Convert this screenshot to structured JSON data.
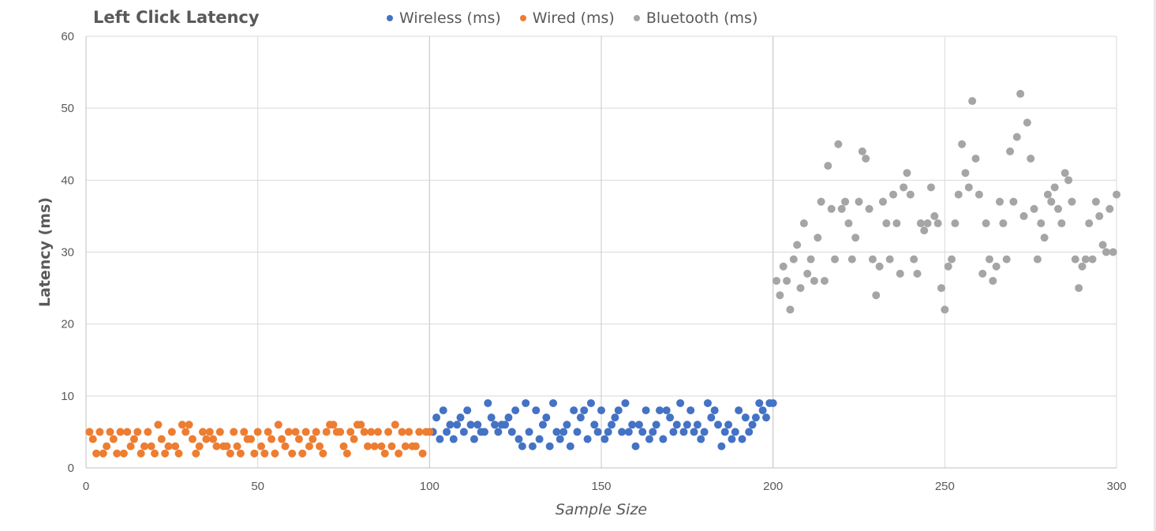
{
  "chart_data": {
    "type": "scatter",
    "title": "Left Click Latency",
    "xlabel": "Sample Size",
    "ylabel": "Latency (ms)",
    "xlim": [
      0,
      300
    ],
    "ylim": [
      0,
      60
    ],
    "x_ticks": [
      0,
      50,
      100,
      150,
      200,
      250,
      300
    ],
    "y_ticks": [
      0,
      10,
      20,
      30,
      40,
      50,
      60
    ],
    "grid": true,
    "legend_position": "top",
    "series": [
      {
        "name": "Wireless (ms)",
        "color": "#4472C4",
        "x": [
          101,
          102,
          103,
          104,
          105,
          106,
          107,
          108,
          109,
          110,
          111,
          112,
          113,
          114,
          115,
          116,
          117,
          118,
          119,
          120,
          121,
          122,
          123,
          124,
          125,
          126,
          127,
          128,
          129,
          130,
          131,
          132,
          133,
          134,
          135,
          136,
          137,
          138,
          139,
          140,
          141,
          142,
          143,
          144,
          145,
          146,
          147,
          148,
          149,
          150,
          151,
          152,
          153,
          154,
          155,
          156,
          157,
          158,
          159,
          160,
          161,
          162,
          163,
          164,
          165,
          166,
          167,
          168,
          169,
          170,
          171,
          172,
          173,
          174,
          175,
          176,
          177,
          178,
          179,
          180,
          181,
          182,
          183,
          184,
          185,
          186,
          187,
          188,
          189,
          190,
          191,
          192,
          193,
          194,
          195,
          196,
          197,
          198,
          199,
          200
        ],
        "y": [
          5,
          7,
          4,
          8,
          5,
          6,
          4,
          6,
          7,
          5,
          8,
          6,
          4,
          6,
          5,
          5,
          9,
          7,
          6,
          5,
          6,
          6,
          7,
          5,
          8,
          4,
          3,
          9,
          5,
          3,
          8,
          4,
          6,
          7,
          3,
          9,
          5,
          4,
          5,
          6,
          3,
          8,
          5,
          7,
          8,
          4,
          9,
          6,
          5,
          8,
          4,
          5,
          6,
          7,
          8,
          5,
          9,
          5,
          6,
          3,
          6,
          5,
          8,
          4,
          5,
          6,
          8,
          4,
          8,
          7,
          5,
          6,
          9,
          5,
          6,
          8,
          5,
          6,
          4,
          5,
          9,
          7,
          8,
          6,
          3,
          5,
          6,
          4,
          5,
          8,
          4,
          7,
          5,
          6,
          7,
          9,
          8,
          7,
          9,
          9
        ]
      },
      {
        "name": "Wired (ms)",
        "color": "#ED7D31",
        "x": [
          1,
          2,
          3,
          4,
          5,
          6,
          7,
          8,
          9,
          10,
          11,
          12,
          13,
          14,
          15,
          16,
          17,
          18,
          19,
          20,
          21,
          22,
          23,
          24,
          25,
          26,
          27,
          28,
          29,
          30,
          31,
          32,
          33,
          34,
          35,
          36,
          37,
          38,
          39,
          40,
          41,
          42,
          43,
          44,
          45,
          46,
          47,
          48,
          49,
          50,
          51,
          52,
          53,
          54,
          55,
          56,
          57,
          58,
          59,
          60,
          61,
          62,
          63,
          64,
          65,
          66,
          67,
          68,
          69,
          70,
          71,
          72,
          73,
          74,
          75,
          76,
          77,
          78,
          79,
          80,
          81,
          82,
          83,
          84,
          85,
          86,
          87,
          88,
          89,
          90,
          91,
          92,
          93,
          94,
          95,
          96,
          97,
          98,
          99,
          100
        ],
        "y": [
          5,
          4,
          2,
          5,
          2,
          3,
          5,
          4,
          2,
          5,
          2,
          5,
          3,
          4,
          5,
          2,
          3,
          5,
          3,
          2,
          6,
          4,
          2,
          3,
          5,
          3,
          2,
          6,
          5,
          6,
          4,
          2,
          3,
          5,
          4,
          5,
          4,
          3,
          5,
          3,
          3,
          2,
          5,
          3,
          2,
          5,
          4,
          4,
          2,
          5,
          3,
          2,
          5,
          4,
          2,
          6,
          4,
          3,
          5,
          2,
          5,
          4,
          2,
          5,
          3,
          4,
          5,
          3,
          2,
          5,
          6,
          6,
          5,
          5,
          3,
          2,
          5,
          4,
          6,
          6,
          5,
          3,
          5,
          3,
          5,
          3,
          2,
          5,
          3,
          6,
          2,
          5,
          3,
          5,
          3,
          3,
          5,
          2,
          5,
          5
        ]
      },
      {
        "name": "Bluetooth (ms)",
        "color": "#A5A5A5",
        "x": [
          201,
          202,
          203,
          204,
          205,
          206,
          207,
          208,
          209,
          210,
          211,
          212,
          213,
          214,
          215,
          216,
          217,
          218,
          219,
          220,
          221,
          222,
          223,
          224,
          225,
          226,
          227,
          228,
          229,
          230,
          231,
          232,
          233,
          234,
          235,
          236,
          237,
          238,
          239,
          240,
          241,
          242,
          243,
          244,
          245,
          246,
          247,
          248,
          249,
          250,
          251,
          252,
          253,
          254,
          255,
          256,
          257,
          258,
          259,
          260,
          261,
          262,
          263,
          264,
          265,
          266,
          267,
          268,
          269,
          270,
          271,
          272,
          273,
          274,
          275,
          276,
          277,
          278,
          279,
          280,
          281,
          282,
          283,
          284,
          285,
          286,
          287,
          288,
          289,
          290,
          291,
          292,
          293,
          294,
          295,
          296,
          297,
          298,
          299,
          300
        ],
        "y": [
          26,
          24,
          28,
          26,
          22,
          29,
          31,
          25,
          34,
          27,
          29,
          26,
          32,
          37,
          26,
          42,
          36,
          29,
          45,
          36,
          37,
          34,
          29,
          32,
          37,
          44,
          43,
          36,
          29,
          24,
          28,
          37,
          34,
          29,
          38,
          34,
          27,
          39,
          41,
          38,
          29,
          27,
          34,
          33,
          34,
          39,
          35,
          34,
          25,
          22,
          28,
          29,
          34,
          38,
          45,
          41,
          39,
          51,
          43,
          38,
          27,
          34,
          29,
          26,
          28,
          37,
          34,
          29,
          44,
          37,
          46,
          52,
          35,
          48,
          43,
          36,
          29,
          34,
          32,
          38,
          37,
          39,
          36,
          34,
          41,
          40,
          37,
          29,
          25,
          28,
          29,
          34,
          29,
          37,
          35,
          31,
          30,
          36,
          30,
          38
        ]
      }
    ]
  }
}
